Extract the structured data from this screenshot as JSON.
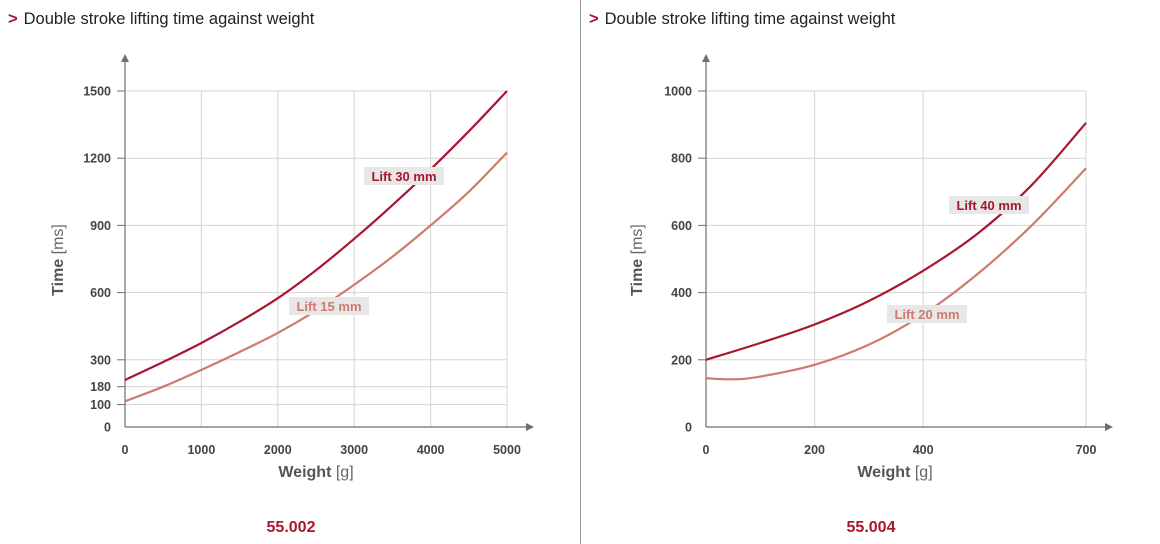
{
  "chart_data": [
    {
      "type": "line",
      "title": "Double stroke lifting time against weight",
      "model": "55.002",
      "xlabel": "Weight",
      "xunit": "[g]",
      "ylabel": "Time",
      "yunit": "[ms]",
      "xlim": [
        0,
        5000
      ],
      "ylim": [
        0,
        1500
      ],
      "xticks": [
        "0",
        "1000",
        "2000",
        "3000",
        "4000",
        "5000"
      ],
      "xtick_values": [
        0,
        1000,
        2000,
        3000,
        4000,
        5000
      ],
      "yticks": [
        "0",
        "100",
        "180",
        "300",
        "600",
        "900",
        "1200",
        "1500"
      ],
      "ytick_values": [
        0,
        100,
        180,
        300,
        600,
        900,
        1200,
        1500
      ],
      "grid": true,
      "series": [
        {
          "name": "Lift 30 mm",
          "color": "#a8162f",
          "x": [
            0,
            500,
            1000,
            1500,
            2000,
            2500,
            3000,
            3500,
            4000,
            4500,
            5000
          ],
          "y": [
            210,
            290,
            375,
            470,
            575,
            700,
            840,
            990,
            1150,
            1320,
            1500
          ]
        },
        {
          "name": "Lift 15 mm",
          "color": "#cf7a6f",
          "x": [
            0,
            500,
            1000,
            1500,
            2000,
            2500,
            3000,
            3500,
            4000,
            4500,
            5000
          ],
          "y": [
            115,
            180,
            255,
            335,
            420,
            520,
            635,
            760,
            900,
            1050,
            1225
          ]
        }
      ]
    },
    {
      "type": "line",
      "title": "Double stroke lifting time against weight",
      "model": "55.004",
      "xlabel": "Weight",
      "xunit": "[g]",
      "ylabel": "Time",
      "yunit": "[ms]",
      "xlim": [
        0,
        700
      ],
      "ylim": [
        0,
        1000
      ],
      "xticks": [
        "0",
        "200",
        "400",
        "700"
      ],
      "xtick_values": [
        0,
        200,
        400,
        700
      ],
      "yticks": [
        "0",
        "200",
        "400",
        "600",
        "800",
        "1000"
      ],
      "ytick_values": [
        0,
        200,
        400,
        600,
        800,
        1000
      ],
      "grid": true,
      "series": [
        {
          "name": "Lift 40 mm",
          "color": "#a8162f",
          "x": [
            0,
            100,
            200,
            300,
            400,
            500,
            600,
            700
          ],
          "y": [
            200,
            250,
            305,
            375,
            465,
            575,
            720,
            905
          ]
        },
        {
          "name": "Lift 20 mm",
          "color": "#cf7a6f",
          "x": [
            0,
            50,
            100,
            200,
            300,
            400,
            500,
            600,
            700
          ],
          "y": [
            145,
            142,
            150,
            185,
            245,
            335,
            455,
            600,
            770
          ]
        }
      ]
    }
  ]
}
